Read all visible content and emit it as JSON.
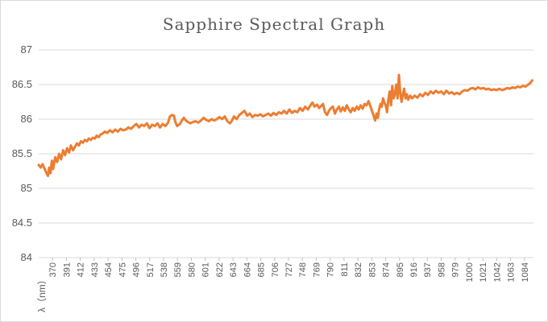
{
  "chart_data": {
    "type": "line",
    "title": "Sapphire Spectral Graph",
    "xlabel": "λ（nm）",
    "ylabel": "",
    "ylim": [
      84,
      87
    ],
    "yticks": [
      84,
      84.5,
      85,
      85.5,
      86,
      86.5,
      87
    ],
    "xlim": [
      350,
      1100
    ],
    "xtick_labels": [
      "370",
      "391",
      "412",
      "433",
      "454",
      "475",
      "496",
      "517",
      "538",
      "559",
      "580",
      "601",
      "622",
      "643",
      "664",
      "685",
      "706",
      "727",
      "748",
      "769",
      "790",
      "811",
      "832",
      "853",
      "874",
      "895",
      "916",
      "937",
      "958",
      "979",
      "1000",
      "1021",
      "1042",
      "1063",
      "1084"
    ],
    "grid": true,
    "legend": "none",
    "series": [
      {
        "color": "#ed7d31",
        "points": [
          [
            350,
            85.34
          ],
          [
            353,
            85.3
          ],
          [
            356,
            85.35
          ],
          [
            359,
            85.28
          ],
          [
            362,
            85.22
          ],
          [
            364,
            85.18
          ],
          [
            366,
            85.3
          ],
          [
            368,
            85.22
          ],
          [
            370,
            85.4
          ],
          [
            372,
            85.28
          ],
          [
            375,
            85.45
          ],
          [
            378,
            85.38
          ],
          [
            381,
            85.5
          ],
          [
            384,
            85.42
          ],
          [
            387,
            85.55
          ],
          [
            390,
            85.48
          ],
          [
            393,
            85.58
          ],
          [
            396,
            85.52
          ],
          [
            399,
            85.62
          ],
          [
            402,
            85.55
          ],
          [
            405,
            85.6
          ],
          [
            408,
            85.65
          ],
          [
            411,
            85.62
          ],
          [
            414,
            85.68
          ],
          [
            417,
            85.66
          ],
          [
            420,
            85.7
          ],
          [
            423,
            85.68
          ],
          [
            426,
            85.72
          ],
          [
            429,
            85.7
          ],
          [
            432,
            85.73
          ],
          [
            435,
            85.72
          ],
          [
            438,
            85.76
          ],
          [
            441,
            85.74
          ],
          [
            444,
            85.78
          ],
          [
            447,
            85.79
          ],
          [
            450,
            85.82
          ],
          [
            454,
            85.8
          ],
          [
            458,
            85.84
          ],
          [
            462,
            85.81
          ],
          [
            466,
            85.85
          ],
          [
            470,
            85.82
          ],
          [
            474,
            85.86
          ],
          [
            478,
            85.84
          ],
          [
            482,
            85.85
          ],
          [
            486,
            85.88
          ],
          [
            490,
            85.86
          ],
          [
            494,
            85.9
          ],
          [
            498,
            85.93
          ],
          [
            502,
            85.88
          ],
          [
            506,
            85.92
          ],
          [
            510,
            85.9
          ],
          [
            514,
            85.94
          ],
          [
            518,
            85.87
          ],
          [
            522,
            85.92
          ],
          [
            526,
            85.9
          ],
          [
            530,
            85.94
          ],
          [
            534,
            85.88
          ],
          [
            538,
            85.93
          ],
          [
            542,
            85.9
          ],
          [
            546,
            85.95
          ],
          [
            549,
            86.04
          ],
          [
            552,
            86.06
          ],
          [
            555,
            86.05
          ],
          [
            557,
            85.96
          ],
          [
            560,
            85.9
          ],
          [
            564,
            85.93
          ],
          [
            567,
            85.98
          ],
          [
            570,
            86.02
          ],
          [
            573,
            85.98
          ],
          [
            576,
            85.96
          ],
          [
            580,
            85.94
          ],
          [
            584,
            85.96
          ],
          [
            588,
            85.97
          ],
          [
            592,
            85.95
          ],
          [
            596,
            85.98
          ],
          [
            600,
            86.02
          ],
          [
            604,
            85.99
          ],
          [
            608,
            85.97
          ],
          [
            612,
            86.0
          ],
          [
            616,
            85.98
          ],
          [
            620,
            86.0
          ],
          [
            624,
            86.03
          ],
          [
            628,
            86.0
          ],
          [
            632,
            86.04
          ],
          [
            636,
            85.97
          ],
          [
            640,
            85.94
          ],
          [
            643,
            85.98
          ],
          [
            646,
            86.04
          ],
          [
            650,
            86.0
          ],
          [
            654,
            86.06
          ],
          [
            658,
            86.09
          ],
          [
            662,
            86.12
          ],
          [
            666,
            86.05
          ],
          [
            670,
            86.08
          ],
          [
            674,
            86.03
          ],
          [
            678,
            86.06
          ],
          [
            682,
            86.05
          ],
          [
            686,
            86.07
          ],
          [
            690,
            86.04
          ],
          [
            694,
            86.06
          ],
          [
            698,
            86.08
          ],
          [
            702,
            86.05
          ],
          [
            706,
            86.09
          ],
          [
            710,
            86.06
          ],
          [
            714,
            86.1
          ],
          [
            718,
            86.08
          ],
          [
            722,
            86.12
          ],
          [
            726,
            86.08
          ],
          [
            730,
            86.14
          ],
          [
            734,
            86.09
          ],
          [
            738,
            86.12
          ],
          [
            742,
            86.1
          ],
          [
            746,
            86.16
          ],
          [
            750,
            86.12
          ],
          [
            754,
            86.18
          ],
          [
            758,
            86.14
          ],
          [
            762,
            86.2
          ],
          [
            765,
            86.24
          ],
          [
            768,
            86.18
          ],
          [
            772,
            86.21
          ],
          [
            775,
            86.16
          ],
          [
            778,
            86.19
          ],
          [
            781,
            86.22
          ],
          [
            784,
            86.1
          ],
          [
            787,
            86.06
          ],
          [
            790,
            86.12
          ],
          [
            793,
            86.16
          ],
          [
            796,
            86.18
          ],
          [
            799,
            86.08
          ],
          [
            802,
            86.14
          ],
          [
            805,
            86.18
          ],
          [
            808,
            86.11
          ],
          [
            811,
            86.17
          ],
          [
            814,
            86.12
          ],
          [
            817,
            86.2
          ],
          [
            820,
            86.14
          ],
          [
            823,
            86.1
          ],
          [
            826,
            86.16
          ],
          [
            829,
            86.12
          ],
          [
            832,
            86.18
          ],
          [
            835,
            86.14
          ],
          [
            838,
            86.2
          ],
          [
            841,
            86.15
          ],
          [
            844,
            86.22
          ],
          [
            847,
            86.2
          ],
          [
            850,
            86.26
          ],
          [
            853,
            86.18
          ],
          [
            856,
            86.1
          ],
          [
            858,
            86.04
          ],
          [
            860,
            85.98
          ],
          [
            862,
            86.08
          ],
          [
            864,
            86.02
          ],
          [
            866,
            86.14
          ],
          [
            868,
            86.22
          ],
          [
            870,
            86.18
          ],
          [
            872,
            86.3
          ],
          [
            874,
            86.24
          ],
          [
            876,
            86.2
          ],
          [
            878,
            86.1
          ],
          [
            880,
            86.28
          ],
          [
            882,
            86.4
          ],
          [
            884,
            86.2
          ],
          [
            886,
            86.48
          ],
          [
            888,
            86.3
          ],
          [
            890,
            86.36
          ],
          [
            892,
            86.5
          ],
          [
            894,
            86.3
          ],
          [
            896,
            86.64
          ],
          [
            898,
            86.38
          ],
          [
            900,
            86.25
          ],
          [
            902,
            86.36
          ],
          [
            904,
            86.44
          ],
          [
            906,
            86.3
          ],
          [
            908,
            86.36
          ],
          [
            910,
            86.28
          ],
          [
            913,
            86.34
          ],
          [
            916,
            86.3
          ],
          [
            920,
            86.34
          ],
          [
            924,
            86.31
          ],
          [
            928,
            86.36
          ],
          [
            932,
            86.33
          ],
          [
            936,
            86.38
          ],
          [
            940,
            86.35
          ],
          [
            944,
            86.4
          ],
          [
            948,
            86.37
          ],
          [
            952,
            86.41
          ],
          [
            956,
            86.38
          ],
          [
            960,
            86.4
          ],
          [
            964,
            86.36
          ],
          [
            968,
            86.41
          ],
          [
            972,
            86.37
          ],
          [
            976,
            86.39
          ],
          [
            980,
            86.36
          ],
          [
            984,
            86.38
          ],
          [
            988,
            86.36
          ],
          [
            992,
            86.4
          ],
          [
            996,
            86.42
          ],
          [
            1000,
            86.41
          ],
          [
            1004,
            86.44
          ],
          [
            1008,
            86.45
          ],
          [
            1012,
            86.43
          ],
          [
            1016,
            86.46
          ],
          [
            1020,
            86.44
          ],
          [
            1024,
            86.45
          ],
          [
            1028,
            86.43
          ],
          [
            1032,
            86.44
          ],
          [
            1036,
            86.42
          ],
          [
            1040,
            86.43
          ],
          [
            1044,
            86.42
          ],
          [
            1048,
            86.44
          ],
          [
            1052,
            86.42
          ],
          [
            1056,
            86.43
          ],
          [
            1060,
            86.45
          ],
          [
            1064,
            86.44
          ],
          [
            1068,
            86.46
          ],
          [
            1072,
            86.45
          ],
          [
            1076,
            86.47
          ],
          [
            1080,
            86.46
          ],
          [
            1084,
            86.48
          ],
          [
            1088,
            86.47
          ],
          [
            1092,
            86.5
          ],
          [
            1095,
            86.52
          ],
          [
            1098,
            86.56
          ]
        ]
      }
    ]
  }
}
